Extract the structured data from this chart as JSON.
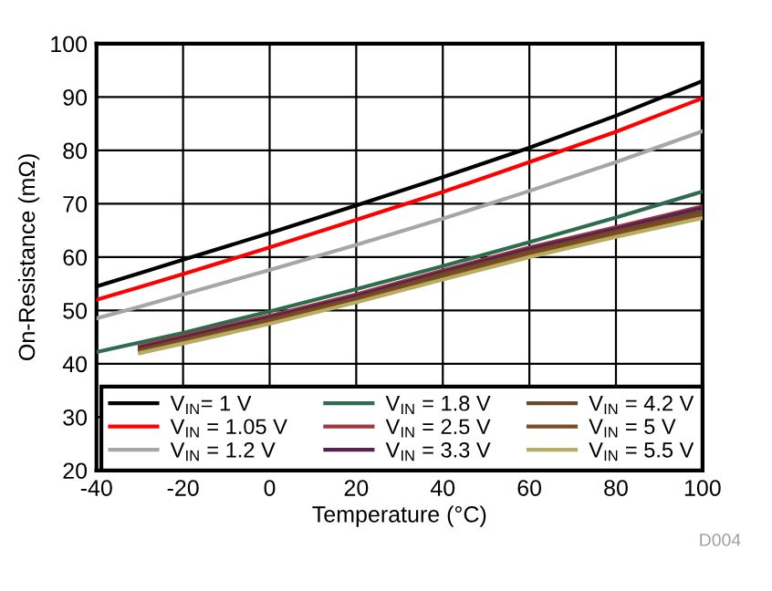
{
  "chart_data": {
    "type": "line",
    "xlabel": "Temperature (°C)",
    "ylabel": "On-Resistance (mΩ)",
    "x": [
      -40,
      -30,
      -20,
      0,
      20,
      40,
      60,
      80,
      100
    ],
    "xlim": [
      -40,
      100
    ],
    "xticks": [
      -40,
      -20,
      0,
      20,
      40,
      60,
      80,
      100
    ],
    "ylim": [
      20,
      100
    ],
    "yticks": [
      20,
      30,
      40,
      50,
      60,
      70,
      80,
      90,
      100
    ],
    "grid": true,
    "legend": "bottom",
    "marker": "none",
    "line_style": "solid",
    "annotations": [
      "D004"
    ],
    "series": [
      {
        "name": "V$_{IN}$= 1 V",
        "color": "#000000",
        "values": [
          54.5,
          57.0,
          59.5,
          64.5,
          69.7,
          75.0,
          80.5,
          86.5,
          93.0
        ]
      },
      {
        "name": "V$_{IN}$ = 1.05 V",
        "color": "#ff0000",
        "values": [
          52.0,
          54.4,
          56.8,
          61.8,
          67.0,
          72.2,
          77.8,
          83.5,
          89.8
        ]
      },
      {
        "name": "V$_{IN}$ = 1.2 V",
        "color": "#a6a6a6",
        "values": [
          48.5,
          50.7,
          53.0,
          57.6,
          62.3,
          67.2,
          72.4,
          77.8,
          83.6
        ]
      },
      {
        "name": "V$_{IN}$ = 1.8 V",
        "color": "#2e6b4f",
        "values": [
          42.2,
          44.0,
          45.8,
          49.8,
          54.0,
          58.3,
          62.8,
          67.4,
          72.3
        ]
      },
      {
        "name": "V$_{IN}$ = 2.5 V",
        "color": "#a0393f",
        "values": [
          null,
          43.3,
          45.2,
          49.0,
          53.0,
          57.5,
          61.8,
          65.6,
          69.5
        ]
      },
      {
        "name": "V$_{IN}$ = 3.3 V",
        "color": "#5a2050",
        "values": [
          null,
          43.0,
          44.9,
          48.7,
          52.7,
          57.2,
          61.5,
          65.3,
          69.2
        ]
      },
      {
        "name": "V$_{IN}$ = 4.2 V",
        "color": "#6b4a2a",
        "values": [
          null,
          42.6,
          44.5,
          48.3,
          52.3,
          56.8,
          61.0,
          64.8,
          68.5
        ]
      },
      {
        "name": "V$_{IN}$ = 5 V",
        "color": "#7e4a1e",
        "values": [
          null,
          42.3,
          44.2,
          48.0,
          52.0,
          56.4,
          60.6,
          64.4,
          68.0
        ]
      },
      {
        "name": "V$_{IN}$ = 5.5 V",
        "color": "#b5ad62",
        "values": [
          null,
          42.0,
          43.8,
          47.5,
          51.5,
          55.8,
          60.0,
          63.8,
          67.3
        ]
      }
    ]
  }
}
